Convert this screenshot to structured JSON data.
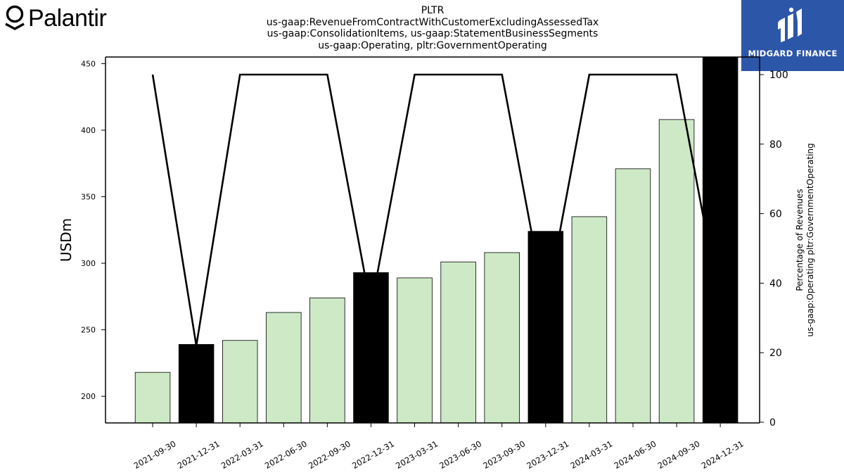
{
  "brand": {
    "logo_text": "Palantir",
    "badge_text": "MIDGARD FINANCE",
    "badge_color": "#2c56a8"
  },
  "titles": [
    "PLTR",
    "us-gaap:RevenueFromContractWithCustomerExcludingAssessedTax",
    "us-gaap:ConsolidationItems, us-gaap:StatementBusinessSegments",
    "us-gaap:Operating, pltr:GovernmentOperating"
  ],
  "chart_data": {
    "type": "bar",
    "categories": [
      "2021-09-30",
      "2021-12-31",
      "2022-03-31",
      "2022-06-30",
      "2022-09-30",
      "2022-12-31",
      "2023-03-31",
      "2023-06-30",
      "2023-09-30",
      "2023-12-31",
      "2024-03-31",
      "2024-06-30",
      "2024-09-30",
      "2024-12-31"
    ],
    "values": [
      218,
      239,
      242,
      263,
      274,
      293,
      289,
      301,
      308,
      324,
      335,
      371,
      408,
      455
    ],
    "highlighted": [
      false,
      true,
      false,
      false,
      false,
      true,
      false,
      false,
      false,
      true,
      false,
      false,
      false,
      true
    ],
    "bar_color": "#cde9c6",
    "highlight_color": "#000000",
    "ylabel": "USDm",
    "ylim": [
      180,
      455
    ],
    "yticks": [
      200,
      250,
      300,
      350,
      400,
      450
    ],
    "secondary": {
      "type": "line",
      "values": [
        100,
        22,
        100,
        100,
        100,
        33,
        100,
        100,
        100,
        33,
        100,
        100,
        100,
        33
      ],
      "ylabel_lines": [
        "Percentage of Revenues",
        "us-gaap:Operating pltr:GovernmentOperating"
      ],
      "ylim": [
        0,
        100
      ],
      "yticks": [
        0,
        20,
        40,
        60,
        80,
        100
      ],
      "color": "#000000"
    }
  }
}
